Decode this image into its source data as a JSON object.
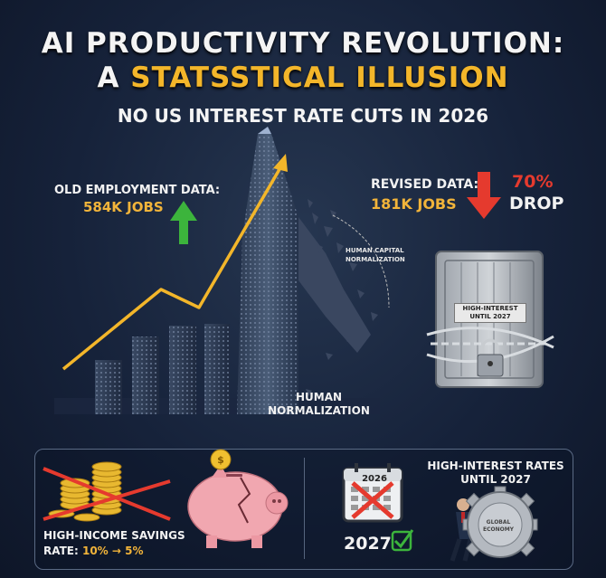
{
  "title": {
    "line1": "AI PRODUCTIVITY REVOLUTION:",
    "line2_prefix": "A ",
    "line2_highlight": "STATSSTICAL ILLUSION",
    "subtitle": "NO US INTEREST RATE CUTS IN 2026"
  },
  "old_data": {
    "label": "OLD EMPLOYMENT DATA:",
    "value": "584K JOBS"
  },
  "revised_data": {
    "label": "REVISED DATA:",
    "value": "181K JOBS",
    "percent": "70%",
    "drop_label": "DROP"
  },
  "human_capital_label": "HUMAN CAPITAL NORMALIZATION",
  "human_normalization_label": "HUMAN NORMALIZATION",
  "vault_label": "HIGH-INTEREST UNTIL 2027",
  "savings": {
    "line1": "HIGH-INCOME SAVINGS",
    "prefix": "RATE: ",
    "value": "10% → 5%"
  },
  "rates_label": "HIGH-INTEREST RATES UNTIL 2027",
  "calendar_year": "2026",
  "new_year": "2027",
  "gear_label": "GLOBAL ECONOMY",
  "colors": {
    "accent": "#f3b62a",
    "up_arrow": "#3cb43c",
    "down_arrow": "#e53a2e",
    "background": "#16223a"
  },
  "icons": [
    "arrow-up-icon",
    "arrow-down-icon",
    "vault-icon",
    "padlock-icon",
    "chain-icon",
    "coin-stack-icon",
    "piggy-bank-icon",
    "calendar-icon",
    "checkmark-icon",
    "businessman-icon",
    "gear-icon"
  ]
}
